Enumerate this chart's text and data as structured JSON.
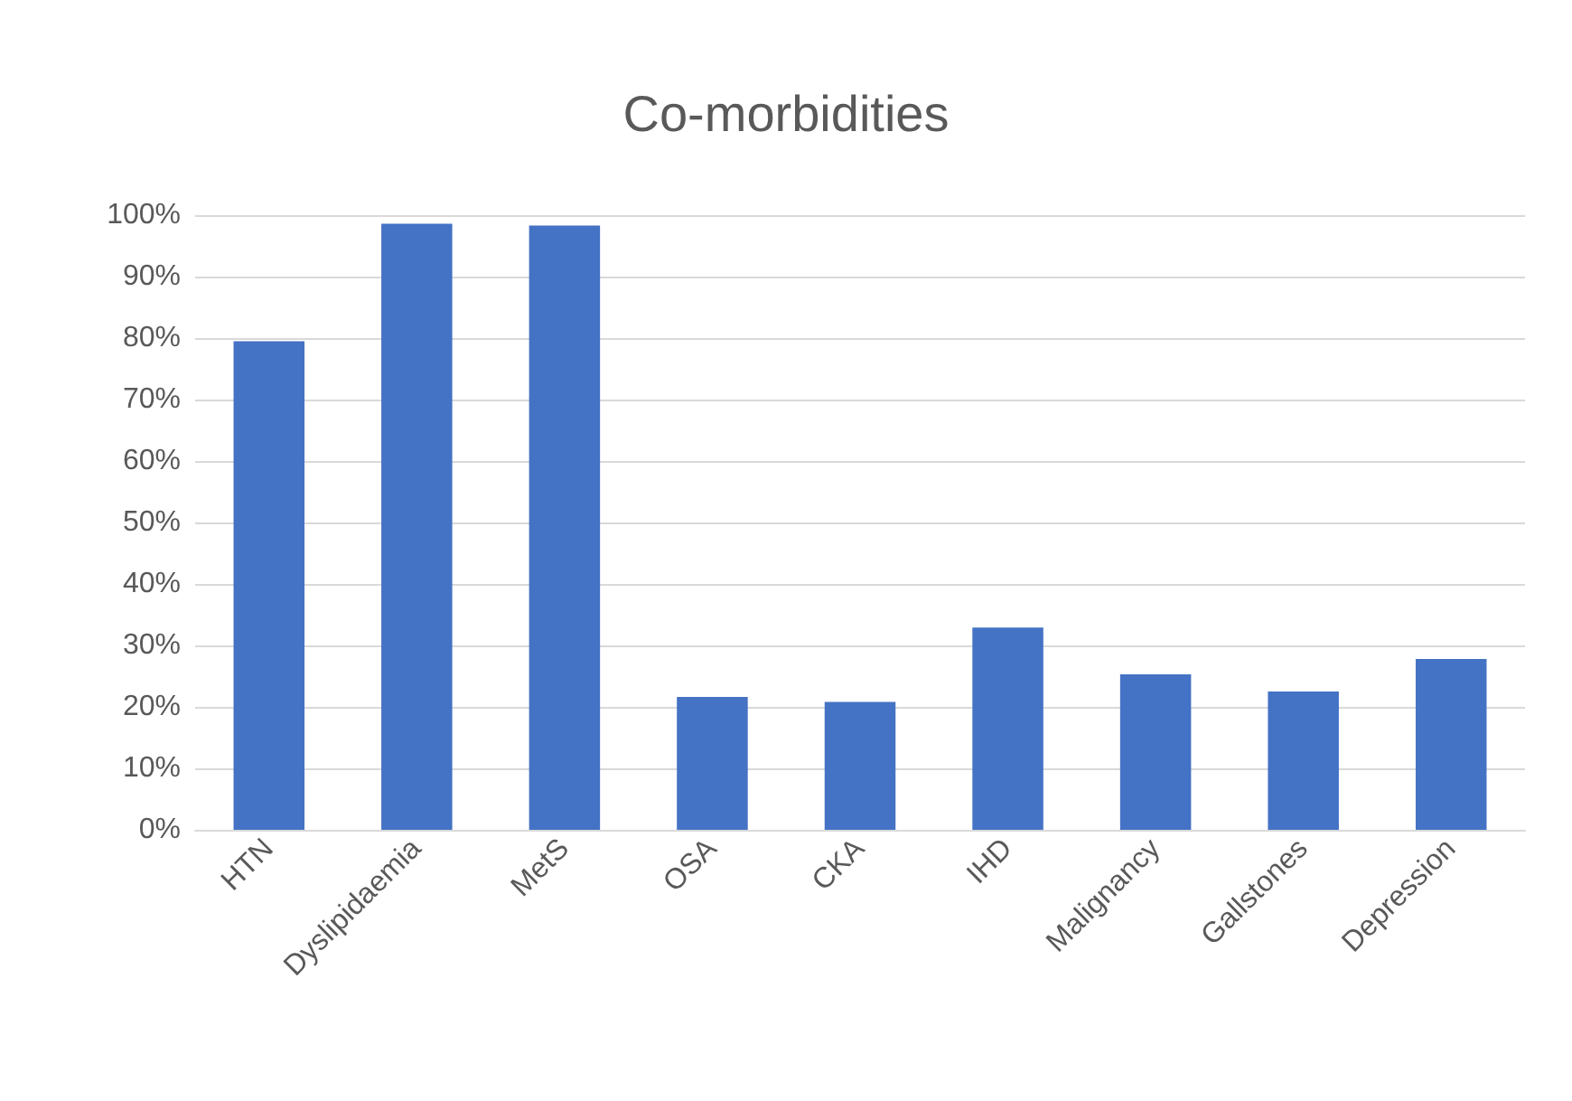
{
  "chart_data": {
    "type": "bar",
    "title": "Co-morbidities",
    "categories": [
      "HTN",
      "Dyslipidaemia",
      "MetS",
      "OSA",
      "CKA",
      "IHD",
      "Malignancy",
      "Gallstones",
      "Depression"
    ],
    "values": [
      79.5,
      98.6,
      98.3,
      21.6,
      20.8,
      32.9,
      25.3,
      22.5,
      27.8
    ],
    "color": "#4472c4",
    "ylim": [
      0,
      100
    ],
    "yticks": [
      {
        "value": 0,
        "label": "0%"
      },
      {
        "value": 10,
        "label": "10%"
      },
      {
        "value": 20,
        "label": "20%"
      },
      {
        "value": 30,
        "label": "30%"
      },
      {
        "value": 40,
        "label": "40%"
      },
      {
        "value": 50,
        "label": "50%"
      },
      {
        "value": 60,
        "label": "60%"
      },
      {
        "value": 70,
        "label": "70%"
      },
      {
        "value": 80,
        "label": "80%"
      },
      {
        "value": 90,
        "label": "90%"
      },
      {
        "value": 100,
        "label": "100%"
      }
    ],
    "grid": true
  }
}
